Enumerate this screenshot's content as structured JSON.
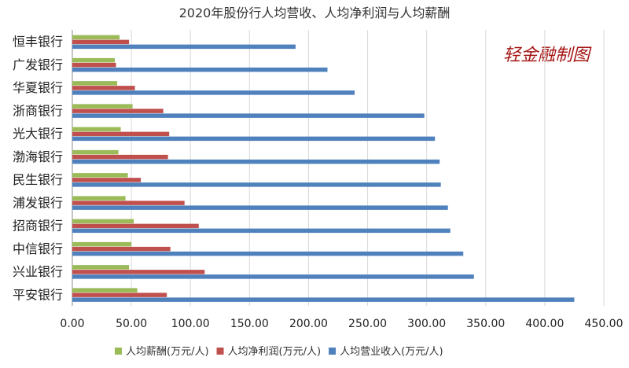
{
  "chart_data": {
    "type": "bar",
    "orientation": "horizontal",
    "title": "2020年股份行人均营收、人均净利润与人均薪酬",
    "watermark": "轻金融制图",
    "categories": [
      "恒丰银行",
      "广发银行",
      "华夏银行",
      "浙商银行",
      "光大银行",
      "渤海银行",
      "民生银行",
      "浦发银行",
      "招商银行",
      "中信银行",
      "兴业银行",
      "平安银行"
    ],
    "series": [
      {
        "name": "人均薪酬(万元/人)",
        "color": "#9bbb59",
        "values": [
          40,
          36,
          38,
          51,
          41,
          39,
          47,
          45,
          52,
          50,
          48,
          55
        ]
      },
      {
        "name": "人均净利润(万元/人)",
        "color": "#c0504d",
        "values": [
          48,
          37,
          53,
          77,
          82,
          81,
          58,
          95,
          107,
          83,
          112,
          80
        ]
      },
      {
        "name": "人均营业收入(万元/人)",
        "color": "#4f81bd",
        "values": [
          189,
          216,
          239,
          298,
          307,
          311,
          312,
          318,
          320,
          331,
          340,
          425
        ]
      }
    ],
    "xlim": [
      0,
      450
    ],
    "xticks": [
      "0.00",
      "50.00",
      "100.00",
      "150.00",
      "200.00",
      "250.00",
      "300.00",
      "350.00",
      "400.00",
      "450.00"
    ],
    "legend_position": "bottom",
    "grid": "vertical"
  }
}
